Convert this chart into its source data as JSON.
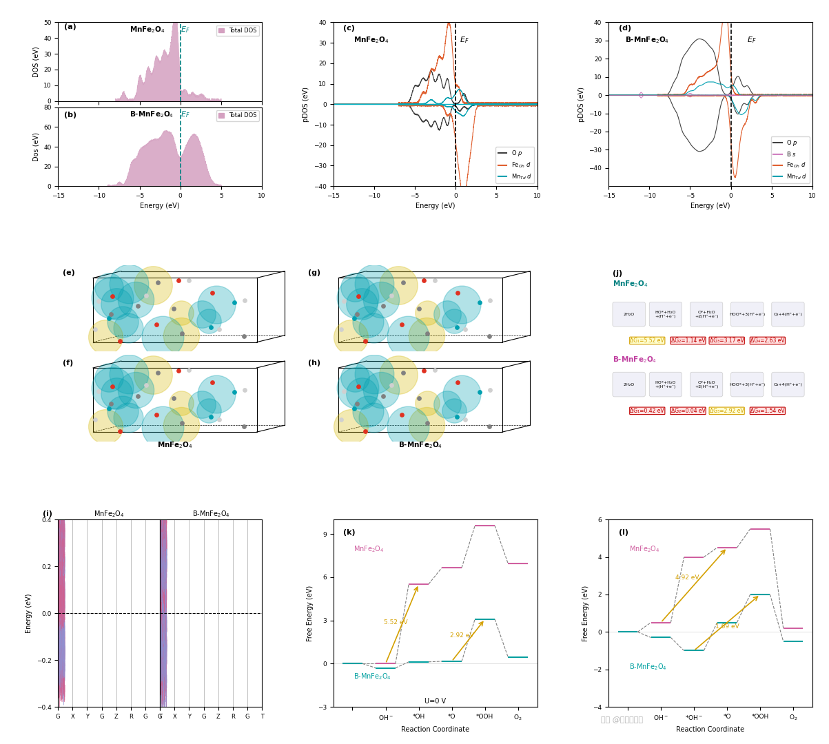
{
  "fig_width": 12.03,
  "fig_height": 10.8,
  "background_color": "#ffffff",
  "panel_a": {
    "title": "MnFe₂O₄",
    "xlabel": "Energy (eV)",
    "ylabel": "DOS (eV)",
    "xlim": [
      -15,
      10
    ],
    "ylim": [
      0,
      50
    ],
    "yticks": [
      0,
      10,
      20,
      30,
      40,
      50
    ],
    "ef_x": 0,
    "fill_color": "#d4a0c0",
    "line_color": "#c080a0",
    "legend_label": "Total DOS",
    "ef_label": "Eₚ",
    "ef_color": "#008080"
  },
  "panel_b": {
    "title": "B-MnFe₂O₄",
    "xlabel": "Energy (eV)",
    "ylabel": "Dos (eV)",
    "xlim": [
      -15,
      10
    ],
    "ylim": [
      0,
      80
    ],
    "yticks": [
      0,
      20,
      40,
      60,
      80
    ],
    "ef_x": 0,
    "fill_color": "#d4a0c0",
    "line_color": "#c080a0",
    "legend_label": "Total DOS",
    "ef_label": "Eₚ",
    "ef_color": "#008080"
  },
  "panel_c": {
    "title": "MnFe₂O₄",
    "xlabel": "Energy (eV)",
    "ylabel": "pDOS (eV)",
    "xlim": [
      -15,
      10
    ],
    "ylim": [
      -40,
      40
    ],
    "yticks": [
      -40,
      -30,
      -20,
      -10,
      0,
      10,
      20,
      30,
      40
    ],
    "ef_x": 0,
    "ef_label": "Eₚ",
    "ef_color": "#000000",
    "colors": {
      "Op": "#404040",
      "FeOh": "#e06030",
      "MnTd": "#00a0b0"
    },
    "labels": {
      "Op": "O p",
      "FeOh": "Feₒₕ d",
      "MnTd": "Mnₜₓ d"
    }
  },
  "panel_d": {
    "title": "B-MnFe₂O₄",
    "xlabel": "Energy (eV)",
    "ylabel": "pDOS (eV)",
    "xlim": [
      -15,
      10
    ],
    "ylim": [
      -50,
      40
    ],
    "yticks": [
      -40,
      -30,
      -20,
      -10,
      0,
      10,
      20,
      30,
      40
    ],
    "ef_x": 0,
    "ef_label": "Eₚ",
    "ef_color": "#000000",
    "colors": {
      "Op": "#404040",
      "Bs": "#d080c0",
      "FeOh": "#e06030",
      "MnTd": "#00a0b0"
    },
    "labels": {
      "Op": "O p",
      "Bs": "B s",
      "FeOh": "Feₒₕ d",
      "MnTd": "Mnₜₓ d"
    }
  },
  "panel_k": {
    "ylabel": "Free Energy (eV)",
    "xlabel": "Reaction Coordinate",
    "title_mnfe": "MnFe₂O₄",
    "title_bmnfe": "B-MnFe₂O₄",
    "ylim": [
      -3,
      9
    ],
    "yticks": [
      -3,
      0,
      3,
      6,
      9
    ],
    "mnfe_color": "#d060a0",
    "bmnfe_color": "#00a0a0",
    "arrow_color_yellow": "#d4a000",
    "steps": [
      "",
      "OH⁻",
      "*OH",
      "*O",
      "*OOH",
      "O₂"
    ],
    "mnfe_energies": [
      0,
      0,
      6.0,
      6.8,
      9.0,
      6.5
    ],
    "bmnfe_energies": [
      0,
      -0.5,
      0.35,
      0.4,
      3.32,
      0.8
    ],
    "label_552": "5.52 eV",
    "label_292": "2.92 eV"
  },
  "panel_l": {
    "ylabel": "Free Energy (eV)",
    "xlabel": "Reaction Coordinate",
    "title_mnfe": "MnFe₂O₄",
    "title_bmnfe": "B-MnFe₂O₄",
    "ylim": [
      -4,
      6
    ],
    "yticks": [
      -4,
      -2,
      0,
      2,
      4,
      6
    ],
    "mnfe_color": "#d060a0",
    "bmnfe_color": "#00a0a0",
    "steps": [
      "",
      "OH⁻",
      "*OH⁻",
      "*O",
      "*OOH",
      "O₂"
    ],
    "mnfe_energies": [
      0,
      0.5,
      4.0,
      4.5,
      5.5,
      0.2
    ],
    "bmnfe_energies": [
      0,
      -0.3,
      -0.8,
      0.8,
      2.0,
      -0.2
    ],
    "label_492": "4.92 eV",
    "label_169": "1.69 eV"
  }
}
